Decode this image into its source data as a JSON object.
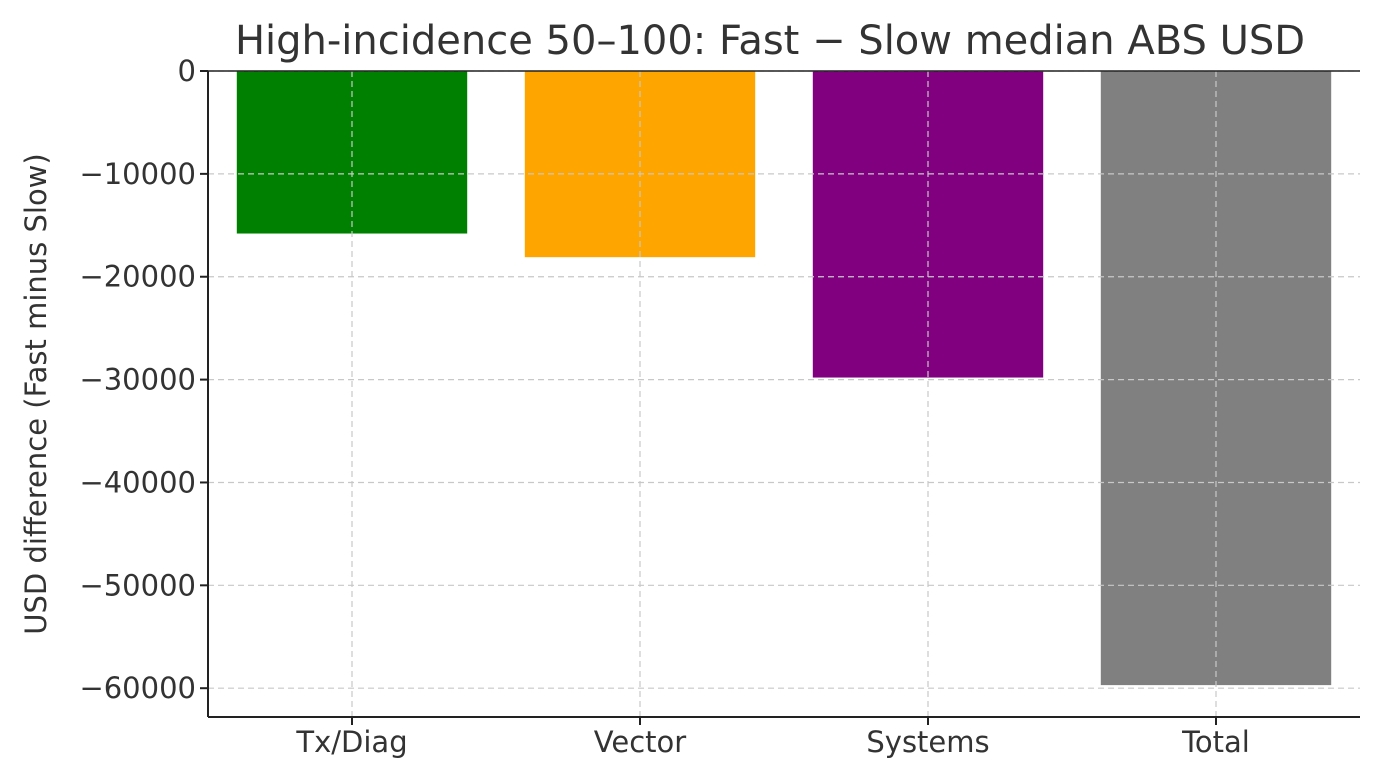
{
  "chart_data": {
    "type": "bar",
    "title": "High-incidence 50–100: Fast − Slow median ABS USD",
    "xlabel": "",
    "ylabel": "USD difference (Fast minus Slow)",
    "categories": [
      "Tx/Diag",
      "Vector",
      "Systems",
      "Total"
    ],
    "values": [
      -15800,
      -18100,
      -29800,
      -59700
    ],
    "colors": [
      "#008000",
      "#ffa500",
      "#800080",
      "#808080"
    ],
    "ylim": [
      -62800,
      0
    ],
    "yticks": [
      0,
      -10000,
      -20000,
      -30000,
      -40000,
      -50000,
      -60000
    ],
    "ytick_labels": [
      "0",
      "−10000",
      "−20000",
      "−30000",
      "−40000",
      "−50000",
      "−60000"
    ],
    "grid": true,
    "legend": "none"
  }
}
